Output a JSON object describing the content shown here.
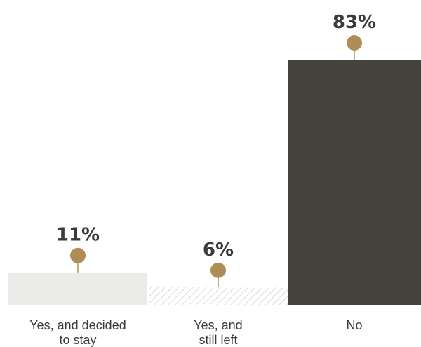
{
  "chart_data": {
    "type": "bar",
    "categories": [
      [
        "Yes, and decided",
        "to stay"
      ],
      [
        "Yes, and",
        "still left"
      ],
      [
        "No"
      ]
    ],
    "values": [
      11,
      6,
      83
    ],
    "value_labels": [
      "11%",
      "6%",
      "83%"
    ],
    "unit": "%",
    "ylim": [
      0,
      100
    ],
    "bar_fills": [
      "solid",
      "hatched",
      "solid"
    ],
    "colors": {
      "bars": [
        "#ebebea",
        "#d9d9d7",
        "#46423e"
      ],
      "marker": "#b08d57",
      "text": "#3b3b3b"
    },
    "grid": false,
    "legend": "none"
  }
}
